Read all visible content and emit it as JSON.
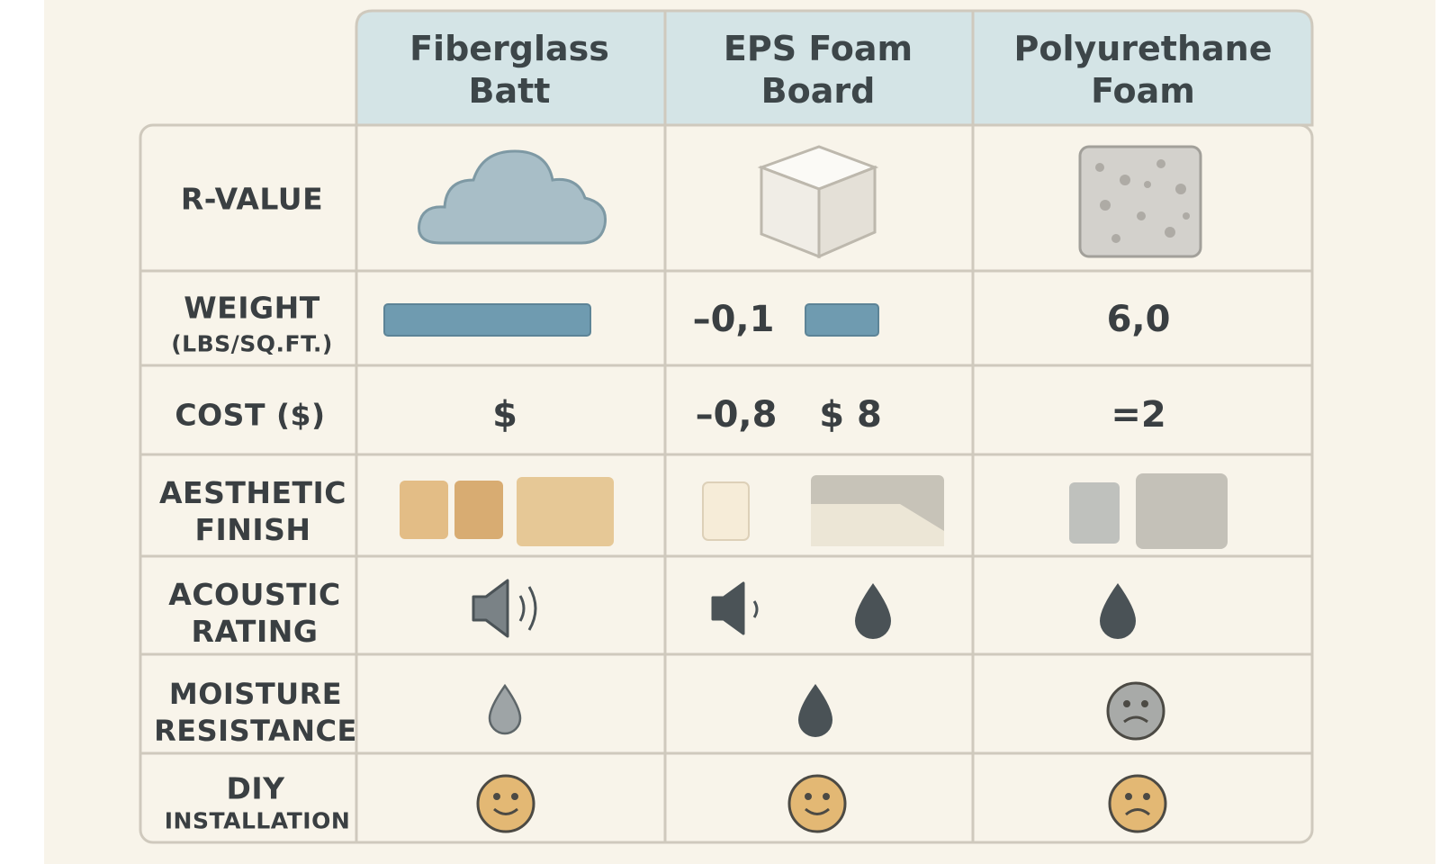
{
  "table": {
    "columns": [
      "Fiberglass Batt",
      "EPS Foam Board",
      "Polyurethane Foam"
    ],
    "rows": {
      "r_value": {
        "label": "R-VALUE"
      },
      "weight": {
        "label": "WEIGHT",
        "sublabel": "(LBS/SQ.FT.)",
        "eps_text": "–0,1",
        "polyurethane_text": "6,0"
      },
      "cost": {
        "label": "COST ($)",
        "fiberglass_text": "$",
        "eps_texts": [
          "–0,8",
          "$ 8"
        ],
        "polyurethane_text": "=2"
      },
      "aesthetic": {
        "label": "AESTHETIC FINISH"
      },
      "acoustic": {
        "label": "ACOUSTIC RATING"
      },
      "moisture": {
        "label": "MOISTURE RESISTANCE"
      },
      "diy": {
        "label": "DIY",
        "sublabel": "INSTALLATION"
      }
    }
  }
}
